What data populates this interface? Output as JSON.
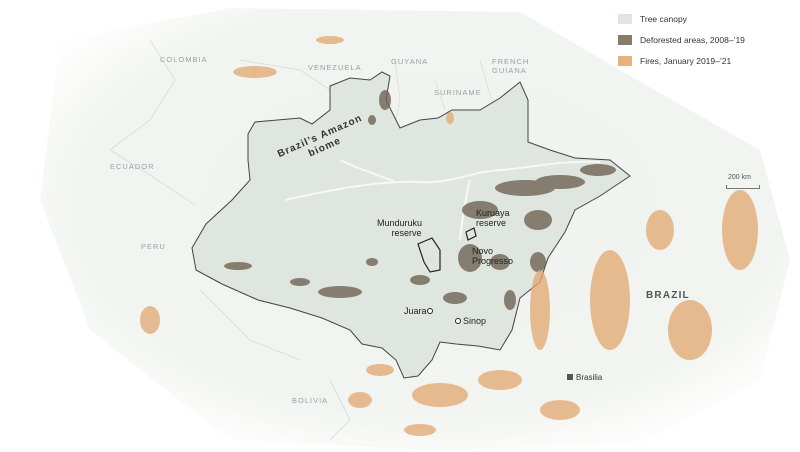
{
  "legend": {
    "items": [
      {
        "label": "Tree canopy",
        "color": "#dfe6e0"
      },
      {
        "label": "Deforested areas, 2008–’19",
        "color": "#8a7c6a"
      },
      {
        "label": "Fires, January 2019–’21",
        "color": "#e7b17f"
      }
    ]
  },
  "scale": {
    "label": "200 km"
  },
  "biome": {
    "line1": "Brazil’s Amazon",
    "line2": "biome"
  },
  "countries": {
    "colombia": "COLOMBIA",
    "venezuela": "VENEZUELA",
    "guyana": "GUYANA",
    "french_guiana_1": "FRENCH",
    "french_guiana_2": "GUIANA",
    "suriname": "SURINAME",
    "ecuador": "ECUADOR",
    "peru": "PERU",
    "bolivia": "BOLIVIA",
    "brazil": "BRAZIL"
  },
  "places": {
    "munduruku_1": "Munduruku",
    "munduruku_2": "reserve",
    "kuruaya_1": "Kuruaya",
    "kuruaya_2": "reserve",
    "novo_1": "Novo",
    "novo_2": "Progresso",
    "juara": "Juara",
    "sinop": "Sinop",
    "brasilia": "Brasilia"
  },
  "colors": {
    "canopy": "#dfe6e0",
    "deforested": "#6f6353",
    "fires": "#e2a76f",
    "border": "#444444"
  }
}
